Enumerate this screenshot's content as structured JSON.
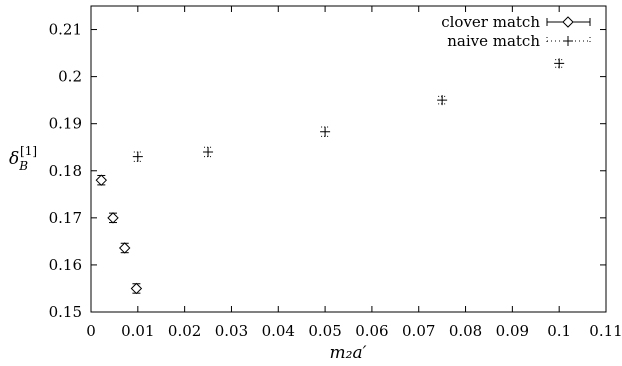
{
  "chart_data": {
    "type": "scatter",
    "xlabel": "m₂a′",
    "ylabel": "δ_B^[1]",
    "xlim": [
      0,
      0.11
    ],
    "ylim": [
      0.15,
      0.215
    ],
    "x_ticks": [
      "0",
      "0.01",
      "0.02",
      "0.03",
      "0.04",
      "0.05",
      "0.06",
      "0.07",
      "0.08",
      "0.09",
      "0.1",
      "0.11"
    ],
    "y_ticks": [
      "0.15",
      "0.16",
      "0.17",
      "0.18",
      "0.19",
      "0.2",
      "0.21"
    ],
    "legend_position": "top-right",
    "grid": false,
    "series": [
      {
        "name": "clover match",
        "marker": "diamond",
        "points": [
          {
            "x": 0.0022,
            "y": 0.178,
            "yerr": 0.001
          },
          {
            "x": 0.0047,
            "y": 0.17,
            "yerr": 0.001
          },
          {
            "x": 0.0072,
            "y": 0.1636,
            "yerr": 0.001
          },
          {
            "x": 0.0097,
            "y": 0.155,
            "yerr": 0.001
          }
        ]
      },
      {
        "name": "naive match",
        "marker": "plus",
        "points": [
          {
            "x": 0.01,
            "y": 0.183,
            "yerr": 0.001
          },
          {
            "x": 0.025,
            "y": 0.184,
            "yerr": 0.001
          },
          {
            "x": 0.05,
            "y": 0.1883,
            "yerr": 0.001
          },
          {
            "x": 0.075,
            "y": 0.195,
            "yerr": 0.0008
          },
          {
            "x": 0.1,
            "y": 0.2028,
            "yerr": 0.0008
          }
        ]
      }
    ]
  }
}
